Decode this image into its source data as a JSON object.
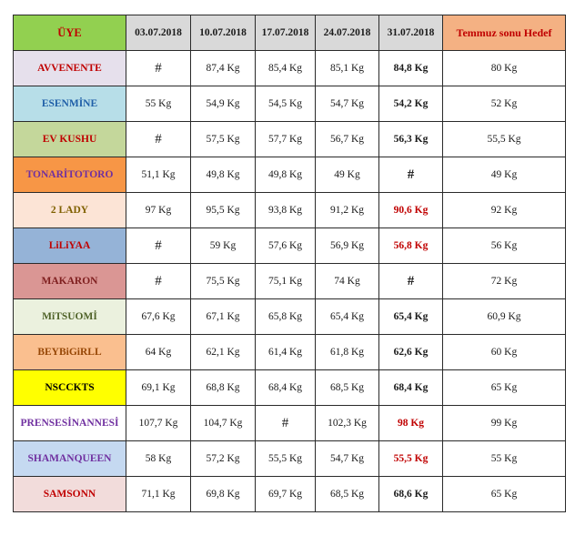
{
  "table": {
    "headers": {
      "member": "ÜYE",
      "dates": [
        "03.07.2018",
        "10.07.2018",
        "17.07.2018",
        "24.07.2018",
        "31.07.2018"
      ],
      "target": "Temmuz sonu Hedef"
    },
    "rows": [
      {
        "name": "AVVENENTE",
        "bg": "#e6e0ec",
        "fg": "#c00000",
        "values": [
          "#",
          "87,4 Kg",
          "85,4 Kg",
          "85,1 Kg",
          "84,8 Kg"
        ],
        "red": [
          false,
          false,
          false,
          false,
          false
        ],
        "target": "80 Kg"
      },
      {
        "name": "ESENMİNE",
        "bg": "#b7dee8",
        "fg": "#1f5fa8",
        "values": [
          "55 Kg",
          "54,9 Kg",
          "54,5 Kg",
          "54,7 Kg",
          "54,2 Kg"
        ],
        "red": [
          false,
          false,
          false,
          false,
          false
        ],
        "target": "52 Kg"
      },
      {
        "name": "EV KUSHU",
        "bg": "#c4d79b",
        "fg": "#c00000",
        "values": [
          "#",
          "57,5 Kg",
          "57,7 Kg",
          "56,7 Kg",
          "56,3 Kg"
        ],
        "red": [
          false,
          false,
          false,
          false,
          false
        ],
        "target": "55,5 Kg"
      },
      {
        "name": "TONARİTOTORO",
        "bg": "#f79646",
        "fg": "#7030a0",
        "values": [
          "51,1 Kg",
          "49,8 Kg",
          "49,8 Kg",
          "49 Kg",
          "#"
        ],
        "red": [
          false,
          false,
          false,
          false,
          false
        ],
        "target": "49 Kg"
      },
      {
        "name": "2 LADY",
        "bg": "#fce4d6",
        "fg": "#7f6000",
        "values": [
          "97 Kg",
          "95,5 Kg",
          "93,8 Kg",
          "91,2 Kg",
          "90,6 Kg"
        ],
        "red": [
          false,
          false,
          false,
          false,
          true
        ],
        "target": "92 Kg"
      },
      {
        "name": "LiLiYAA",
        "bg": "#95b3d7",
        "fg": "#c00000",
        "values": [
          "#",
          "59 Kg",
          "57,6 Kg",
          "56,9 Kg",
          "56,8 Kg"
        ],
        "red": [
          false,
          false,
          false,
          false,
          true
        ],
        "target": "56 Kg"
      },
      {
        "name": "MAKARON",
        "bg": "#da9694",
        "fg": "#7f1f1f",
        "values": [
          "#",
          "75,5 Kg",
          "75,1 Kg",
          "74 Kg",
          "#"
        ],
        "red": [
          false,
          false,
          false,
          false,
          false
        ],
        "target": "72 Kg"
      },
      {
        "name": "MiTSUOMİ",
        "bg": "#ebf1de",
        "fg": "#4f6228",
        "values": [
          "67,6 Kg",
          "67,1 Kg",
          "65,8 Kg",
          "65,4 Kg",
          "65,4 Kg"
        ],
        "red": [
          false,
          false,
          false,
          false,
          false
        ],
        "target": "60,9 Kg"
      },
      {
        "name": "BEYBiGiRLL",
        "bg": "#fabf8f",
        "fg": "#974706",
        "values": [
          "64 Kg",
          "62,1 Kg",
          "61,4 Kg",
          "61,8 Kg",
          "62,6 Kg"
        ],
        "red": [
          false,
          false,
          false,
          false,
          false
        ],
        "target": "60 Kg"
      },
      {
        "name": "NSCCKTS",
        "bg": "#ffff00",
        "fg": "#000000",
        "values": [
          "69,1 Kg",
          "68,8 Kg",
          "68,4 Kg",
          "68,5 Kg",
          "68,4 Kg"
        ],
        "red": [
          false,
          false,
          false,
          false,
          false
        ],
        "target": "65 Kg"
      },
      {
        "name": "PRENSESİNANNESİ",
        "bg": "#ffffff",
        "fg": "#7030a0",
        "values": [
          "107,7 Kg",
          "104,7 Kg",
          "#",
          "102,3 Kg",
          "98 Kg"
        ],
        "red": [
          false,
          false,
          false,
          false,
          true
        ],
        "target": "99 Kg"
      },
      {
        "name": "SHAMANQUEEN",
        "bg": "#c5d9f1",
        "fg": "#7030a0",
        "values": [
          "58 Kg",
          "57,2 Kg",
          "55,5 Kg",
          "54,7 Kg",
          "55,5 Kg"
        ],
        "red": [
          false,
          false,
          false,
          false,
          true
        ],
        "target": "55 Kg"
      },
      {
        "name": "SAMSONN",
        "bg": "#f2dcdb",
        "fg": "#c00000",
        "values": [
          "71,1 Kg",
          "69,8 Kg",
          "69,7 Kg",
          "68,5 Kg",
          "68,6 Kg"
        ],
        "red": [
          false,
          false,
          false,
          false,
          false
        ],
        "target": "65 Kg"
      }
    ]
  }
}
